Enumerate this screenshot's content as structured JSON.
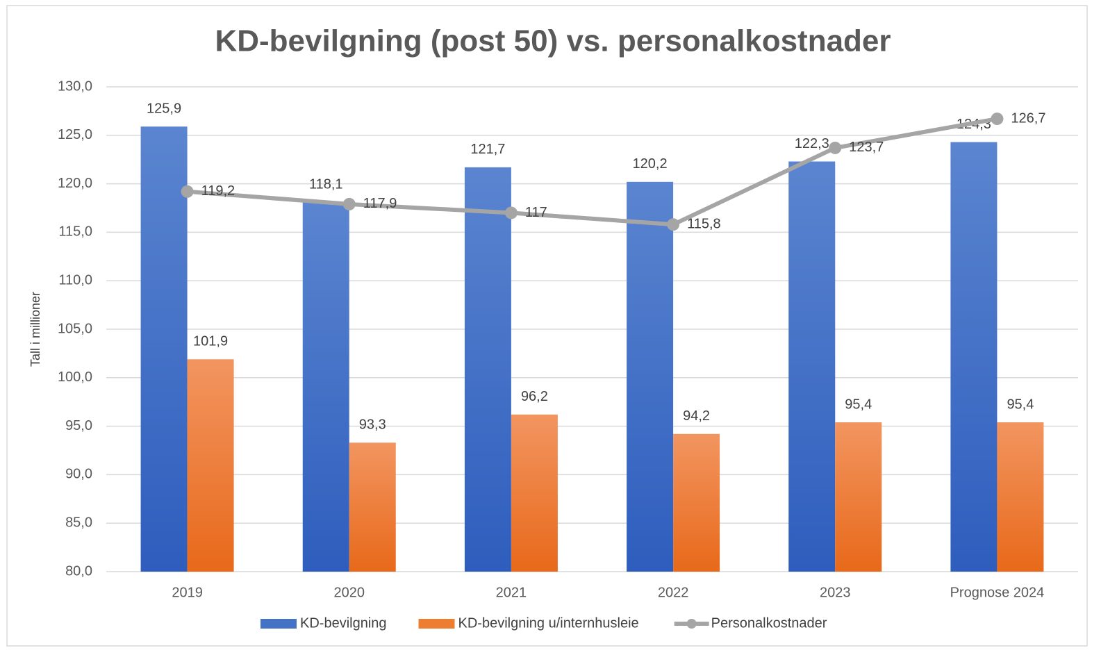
{
  "chart_data": {
    "type": "bar_line",
    "title": "KD-bevilgning (post 50) vs. personalkostnader",
    "y_label": "Tall i millioner",
    "categories": [
      "2019",
      "2020",
      "2021",
      "2022",
      "2023",
      "Prognose 2024"
    ],
    "series": [
      {
        "name": "KD-bevilgning",
        "type": "bar",
        "color": "#4472c4",
        "values": [
          125.9,
          118.1,
          121.7,
          120.2,
          122.3,
          124.3
        ],
        "value_labels": [
          "125,9",
          "118,1",
          "121,7",
          "120,2",
          "122,3",
          "124,3"
        ]
      },
      {
        "name": "KD-bevilgning u/internhusleie",
        "type": "bar",
        "color": "#ed7d31",
        "values": [
          101.9,
          93.3,
          96.2,
          94.2,
          95.4,
          95.4
        ],
        "value_labels": [
          "101,9",
          "93,3",
          "96,2",
          "94,2",
          "95,4",
          "95,4"
        ]
      },
      {
        "name": "Personalkostnader",
        "type": "line",
        "color": "#a5a5a5",
        "values": [
          119.2,
          117.9,
          117,
          115.8,
          123.7,
          126.7
        ],
        "value_labels": [
          "119,2",
          "117,9",
          "117",
          "115,8",
          "123,7",
          "126,7"
        ]
      }
    ],
    "ylim": [
      80,
      130
    ],
    "yticks": [
      {
        "value": 80,
        "label": "80,0"
      },
      {
        "value": 85,
        "label": "85,0"
      },
      {
        "value": 90,
        "label": "90,0"
      },
      {
        "value": 95,
        "label": "95,0"
      },
      {
        "value": 100,
        "label": "100,0"
      },
      {
        "value": 105,
        "label": "105,0"
      },
      {
        "value": 110,
        "label": "110,0"
      },
      {
        "value": 115,
        "label": "115,0"
      },
      {
        "value": 120,
        "label": "120,0"
      },
      {
        "value": 125,
        "label": "125,0"
      },
      {
        "value": 130,
        "label": "130,0"
      }
    ],
    "grid": true,
    "legend": "bottom"
  }
}
